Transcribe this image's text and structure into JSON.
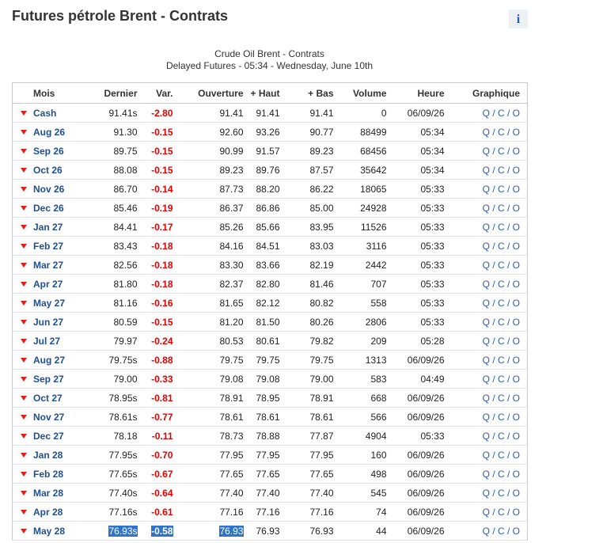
{
  "header": {
    "title": "Futures pétrole Brent - Contrats",
    "info": "i"
  },
  "subtitle": {
    "line1": "Crude Oil Brent - Contrats",
    "line2": "Delayed Futures - 05:34 - Wednesday, June 10th"
  },
  "table": {
    "columns": [
      "Mois",
      "Dernier",
      "Var.",
      "Ouverture",
      "+ Haut",
      "+ Bas",
      "Volume",
      "Heure",
      "Graphique"
    ],
    "rows": [
      [
        "Cash",
        "91.41s",
        "-2.80",
        "91.41",
        "91.41",
        "91.41",
        "0",
        "06/09/26",
        "Q / C / O"
      ],
      [
        "Aug 26",
        "91.30",
        "-0.15",
        "92.60",
        "93.26",
        "90.77",
        "88499",
        "05:34",
        "Q / C / O"
      ],
      [
        "Sep 26",
        "89.75",
        "-0.15",
        "90.99",
        "91.57",
        "89.23",
        "68456",
        "05:34",
        "Q / C / O"
      ],
      [
        "Oct 26",
        "88.08",
        "-0.15",
        "89.23",
        "89.76",
        "87.57",
        "35642",
        "05:34",
        "Q / C / O"
      ],
      [
        "Nov 26",
        "86.70",
        "-0.14",
        "87.73",
        "88.20",
        "86.22",
        "18065",
        "05:33",
        "Q / C / O"
      ],
      [
        "Dec 26",
        "85.46",
        "-0.19",
        "86.37",
        "86.86",
        "85.00",
        "24928",
        "05:33",
        "Q / C / O"
      ],
      [
        "Jan 27",
        "84.41",
        "-0.17",
        "85.26",
        "85.66",
        "83.95",
        "11526",
        "05:33",
        "Q / C / O"
      ],
      [
        "Feb 27",
        "83.43",
        "-0.18",
        "84.16",
        "84.51",
        "83.03",
        "3116",
        "05:33",
        "Q / C / O"
      ],
      [
        "Mar 27",
        "82.56",
        "-0.18",
        "83.30",
        "83.66",
        "82.19",
        "2442",
        "05:33",
        "Q / C / O"
      ],
      [
        "Apr 27",
        "81.80",
        "-0.18",
        "82.37",
        "82.80",
        "81.46",
        "707",
        "05:33",
        "Q / C / O"
      ],
      [
        "May 27",
        "81.16",
        "-0.16",
        "81.65",
        "82.12",
        "80.82",
        "558",
        "05:33",
        "Q / C / O"
      ],
      [
        "Jun 27",
        "80.59",
        "-0.15",
        "81.20",
        "81.50",
        "80.26",
        "2806",
        "05:33",
        "Q / C / O"
      ],
      [
        "Jul 27",
        "79.97",
        "-0.24",
        "80.53",
        "80.61",
        "79.82",
        "209",
        "05:28",
        "Q / C / O"
      ],
      [
        "Aug 27",
        "79.75s",
        "-0.88",
        "79.75",
        "79.75",
        "79.75",
        "1313",
        "06/09/26",
        "Q / C / O"
      ],
      [
        "Sep 27",
        "79.00",
        "-0.33",
        "79.08",
        "79.08",
        "79.00",
        "583",
        "04:49",
        "Q / C / O"
      ],
      [
        "Oct 27",
        "78.95s",
        "-0.81",
        "78.91",
        "78.95",
        "78.91",
        "668",
        "06/09/26",
        "Q / C / O"
      ],
      [
        "Nov 27",
        "78.61s",
        "-0.77",
        "78.61",
        "78.61",
        "78.61",
        "566",
        "06/09/26",
        "Q / C / O"
      ],
      [
        "Dec 27",
        "78.18",
        "-0.11",
        "78.73",
        "78.88",
        "77.87",
        "4904",
        "05:33",
        "Q / C / O"
      ],
      [
        "Jan 28",
        "77.95s",
        "-0.70",
        "77.95",
        "77.95",
        "77.95",
        "160",
        "06/09/26",
        "Q / C / O"
      ],
      [
        "Feb 28",
        "77.65s",
        "-0.67",
        "77.65",
        "77.65",
        "77.65",
        "498",
        "06/09/26",
        "Q / C / O"
      ],
      [
        "Mar 28",
        "77.40s",
        "-0.64",
        "77.40",
        "77.40",
        "77.40",
        "545",
        "06/09/26",
        "Q / C / O"
      ],
      [
        "Apr 28",
        "77.16s",
        "-0.61",
        "77.16",
        "77.16",
        "77.16",
        "74",
        "06/09/26",
        "Q / C / O"
      ],
      [
        "May 28",
        "76.93s",
        "-0.58",
        "76.93",
        "76.93",
        "76.93",
        "44",
        "06/09/26",
        "Q / C / O"
      ]
    ]
  }
}
